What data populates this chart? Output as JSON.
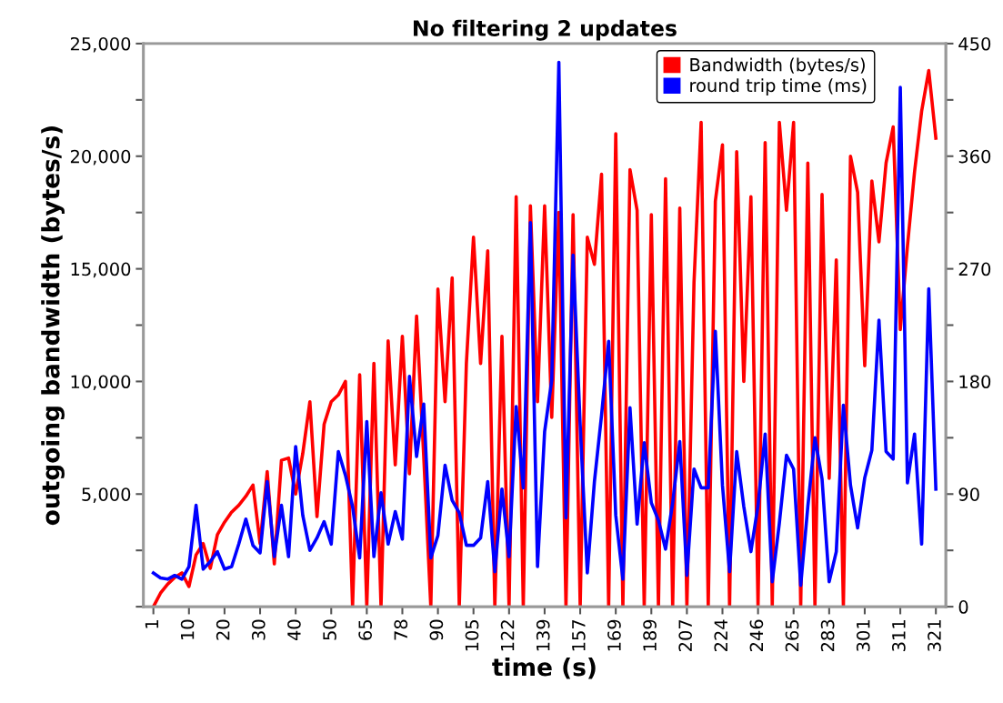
{
  "chart_data": {
    "type": "line",
    "title": "No filtering 2 updates",
    "xlabel": "time (s)",
    "ylabel": "outgoing bandwidth (bytes/s)",
    "categories": [
      "1",
      null,
      null,
      null,
      null,
      "10",
      null,
      null,
      null,
      null,
      "20",
      null,
      null,
      null,
      null,
      "30",
      null,
      null,
      null,
      null,
      "40",
      null,
      null,
      null,
      null,
      "50",
      null,
      null,
      null,
      null,
      "65",
      null,
      null,
      null,
      null,
      "78",
      null,
      null,
      null,
      null,
      "90",
      null,
      null,
      null,
      null,
      "105",
      null,
      null,
      null,
      null,
      "122",
      null,
      null,
      null,
      null,
      "139",
      null,
      null,
      null,
      null,
      "157",
      null,
      null,
      null,
      null,
      "169",
      null,
      null,
      null,
      null,
      "189",
      null,
      null,
      null,
      null,
      "207",
      null,
      null,
      null,
      null,
      "224",
      null,
      null,
      null,
      null,
      "246",
      null,
      null,
      null,
      null,
      "265",
      null,
      null,
      null,
      null,
      "283",
      null,
      null,
      null,
      null,
      "301",
      null,
      null,
      null,
      null,
      "311",
      null,
      null,
      null,
      null,
      "321"
    ],
    "series": [
      {
        "name": "Bandwidth (bytes/s)",
        "color": "#ff0000",
        "values": [
          0,
          600,
          1000,
          1300,
          1500,
          900,
          2300,
          2800,
          1700,
          3200,
          3750,
          4200,
          4500,
          4900,
          5400,
          2800,
          6000,
          1900,
          6500,
          6600,
          5000,
          6800,
          9100,
          4000,
          8100,
          9100,
          9400,
          10000,
          0,
          10300,
          0,
          10800,
          0,
          11800,
          6300,
          12000,
          5900,
          12900,
          6700,
          0,
          14100,
          9100,
          14600,
          0,
          10800,
          16400,
          10800,
          15800,
          0,
          12000,
          0,
          18200,
          0,
          17800,
          9100,
          17800,
          8400,
          17500,
          0,
          17400,
          0,
          16400,
          15200,
          19200,
          0,
          21000,
          0,
          19400,
          17600,
          0,
          17400,
          0,
          19000,
          0,
          17700,
          0,
          14400,
          21500,
          0,
          18000,
          20500,
          0,
          20200,
          10000,
          18200,
          0,
          20600,
          0,
          21500,
          17600,
          21500,
          0,
          19700,
          0,
          18300,
          5700,
          15400,
          0,
          20000,
          18400,
          10700,
          18900,
          16200,
          19700,
          21300,
          12300,
          16000,
          19300,
          22000,
          23800,
          20800
        ]
      },
      {
        "name": "round trip time (ms)",
        "color": "#0000ff",
        "axis": "y2",
        "values": [
          27,
          23,
          22,
          25,
          22,
          32,
          81,
          30,
          36,
          44,
          30,
          32,
          50,
          70,
          49,
          43,
          100,
          40,
          81,
          40,
          128,
          73,
          45,
          55,
          68,
          50,
          124,
          105,
          80,
          39,
          148,
          40,
          91,
          50,
          76,
          54,
          184,
          120,
          162,
          39,
          57,
          113,
          85,
          75,
          49,
          49,
          55,
          100,
          28,
          94,
          40,
          160,
          95,
          307,
          32,
          140,
          181,
          435,
          71,
          281,
          145,
          27,
          100,
          153,
          212,
          73,
          22,
          159,
          66,
          131,
          83,
          69,
          46,
          83,
          132,
          25,
          110,
          95,
          95,
          220,
          97,
          28,
          124,
          80,
          44,
          81,
          138,
          20,
          67,
          121,
          110,
          17,
          80,
          135,
          102,
          20,
          44,
          161,
          97,
          63,
          103,
          125,
          229,
          124,
          118,
          415,
          99,
          138,
          50,
          254,
          94
        ]
      }
    ],
    "ylim": [
      0,
      25000
    ],
    "yticks": [
      {
        "value": 0,
        "label": null
      },
      {
        "value": 2500,
        "label": null
      },
      {
        "value": 5000,
        "label": "5,000"
      },
      {
        "value": 7500,
        "label": null
      },
      {
        "value": 10000,
        "label": "10,000"
      },
      {
        "value": 12500,
        "label": null
      },
      {
        "value": 15000,
        "label": "15,000"
      },
      {
        "value": 17500,
        "label": null
      },
      {
        "value": 20000,
        "label": "20,000"
      },
      {
        "value": 22500,
        "label": null
      },
      {
        "value": 25000,
        "label": "25,000"
      }
    ],
    "y2lim": [
      0,
      450
    ],
    "y2ticks": [
      0,
      {
        "value": 45,
        "label": null
      },
      90,
      {
        "value": 135,
        "label": null
      },
      180,
      {
        "value": 225,
        "label": null
      },
      270,
      {
        "value": 315,
        "label": null
      },
      360,
      {
        "value": 405,
        "label": null
      },
      450
    ],
    "grid": false,
    "legend": "top right",
    "marker": "none",
    "line_style": "solid"
  }
}
